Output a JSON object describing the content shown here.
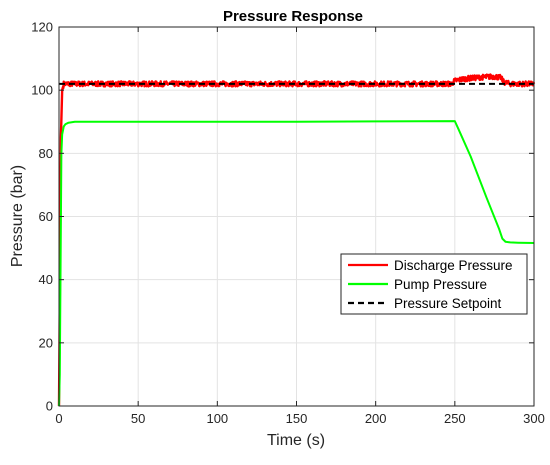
{
  "chart_data": {
    "type": "line",
    "title": "Pressure Response",
    "xlabel": "Time (s)",
    "ylabel": "Pressure (bar)",
    "xlim": [
      0,
      300
    ],
    "ylim": [
      0,
      120
    ],
    "xticks": [
      0,
      50,
      100,
      150,
      200,
      250,
      300
    ],
    "yticks": [
      0,
      20,
      40,
      60,
      80,
      100,
      120
    ],
    "grid": true,
    "legend_position": "lower-right",
    "series": [
      {
        "name": "Discharge Pressure",
        "color": "#ff0000",
        "style": "solid",
        "noisy": true,
        "x": [
          0,
          0.6,
          1.2,
          2,
          3,
          5,
          10,
          50,
          100,
          150,
          200,
          248,
          250,
          255,
          260,
          265,
          270,
          275,
          279,
          281,
          285,
          290,
          300
        ],
        "y": [
          0,
          40,
          85,
          100,
          102,
          102,
          102,
          102,
          102,
          102,
          102,
          102,
          103,
          103.5,
          103.8,
          104,
          104.2,
          104.3,
          104,
          102.5,
          102,
          102,
          102
        ]
      },
      {
        "name": "Pump Pressure",
        "color": "#00ff00",
        "style": "solid",
        "noisy": false,
        "x": [
          0,
          0.5,
          1,
          1.5,
          2,
          3,
          4,
          6,
          10,
          50,
          100,
          150,
          200,
          250,
          252,
          260,
          270,
          278,
          280,
          282,
          285,
          290,
          300
        ],
        "y": [
          0,
          10,
          45,
          80,
          86,
          88.5,
          89.2,
          89.7,
          90,
          90,
          90,
          90,
          90.1,
          90.2,
          88,
          79,
          66,
          56,
          53,
          52,
          51.8,
          51.7,
          51.6
        ]
      },
      {
        "name": "Pressure Setpoint",
        "color": "#000000",
        "style": "dashed",
        "noisy": false,
        "x": [
          0,
          300
        ],
        "y": [
          102,
          102
        ]
      }
    ]
  }
}
